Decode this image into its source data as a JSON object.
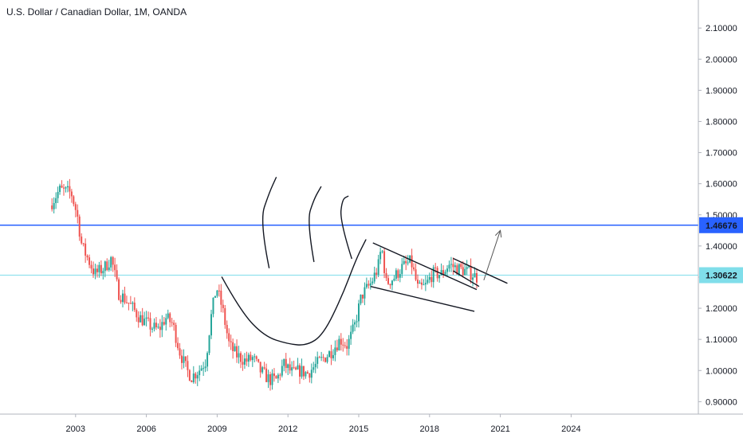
{
  "header": {
    "title": "U.S. Dollar / Canadian Dollar, 1M, OANDA"
  },
  "chart_data": {
    "type": "candlestick",
    "title": "U.S. Dollar / Canadian Dollar, 1M, OANDA",
    "xlim": [
      2000.0,
      2024.9
    ],
    "ylim": [
      0.86,
      2.19
    ],
    "y_ticks": [
      "0.90000",
      "1.00000",
      "1.10000",
      "1.20000",
      "1.30000",
      "1.40000",
      "1.50000",
      "1.60000",
      "1.70000",
      "1.80000",
      "1.90000",
      "2.00000",
      "2.10000"
    ],
    "x_ticks": [
      "2003",
      "2006",
      "2009",
      "2012",
      "2015",
      "2018",
      "2021",
      "2024"
    ],
    "x_tick_values": [
      2003,
      2006,
      2009,
      2012,
      2015,
      2018,
      2021,
      2024
    ],
    "price_path": [
      [
        2002.0,
        1.53
      ],
      [
        2002.4,
        1.58
      ],
      [
        2002.9,
        1.57
      ],
      [
        2003.15,
        1.5
      ],
      [
        2003.35,
        1.4
      ],
      [
        2003.6,
        1.36
      ],
      [
        2003.9,
        1.31
      ],
      [
        2004.3,
        1.33
      ],
      [
        2004.6,
        1.36
      ],
      [
        2004.9,
        1.25
      ],
      [
        2005.3,
        1.22
      ],
      [
        2005.8,
        1.17
      ],
      [
        2006.3,
        1.14
      ],
      [
        2006.6,
        1.13
      ],
      [
        2006.9,
        1.17
      ],
      [
        2007.2,
        1.15
      ],
      [
        2007.5,
        1.06
      ],
      [
        2007.8,
        1.0
      ],
      [
        2008.0,
        0.98
      ],
      [
        2008.3,
        1.0
      ],
      [
        2008.6,
        1.03
      ],
      [
        2008.8,
        1.16
      ],
      [
        2009.05,
        1.27
      ],
      [
        2009.3,
        1.2
      ],
      [
        2009.6,
        1.08
      ],
      [
        2009.9,
        1.05
      ],
      [
        2010.3,
        1.03
      ],
      [
        2010.6,
        1.04
      ],
      [
        2010.9,
        1.0
      ],
      [
        2011.3,
        0.97
      ],
      [
        2011.6,
        0.97
      ],
      [
        2011.9,
        1.02
      ],
      [
        2012.3,
        0.99
      ],
      [
        2012.6,
        1.0
      ],
      [
        2012.9,
        0.99
      ],
      [
        2013.3,
        1.02
      ],
      [
        2013.6,
        1.04
      ],
      [
        2013.9,
        1.06
      ],
      [
        2014.3,
        1.1
      ],
      [
        2014.6,
        1.08
      ],
      [
        2014.9,
        1.14
      ],
      [
        2015.2,
        1.24
      ],
      [
        2015.6,
        1.28
      ],
      [
        2015.9,
        1.33
      ],
      [
        2016.05,
        1.4
      ],
      [
        2016.25,
        1.28
      ],
      [
        2016.6,
        1.3
      ],
      [
        2016.9,
        1.33
      ],
      [
        2017.3,
        1.35
      ],
      [
        2017.6,
        1.26
      ],
      [
        2017.9,
        1.27
      ],
      [
        2018.2,
        1.31
      ],
      [
        2018.6,
        1.31
      ],
      [
        2018.9,
        1.34
      ],
      [
        2019.2,
        1.33
      ],
      [
        2019.6,
        1.32
      ],
      [
        2019.9,
        1.31
      ],
      [
        2020.05,
        1.3
      ]
    ],
    "horizontal_lines": [
      {
        "value": 1.46676,
        "label": "1.46676",
        "color": "#2962ff"
      },
      {
        "value": 1.30622,
        "label": "1.30622",
        "color": "#80deea"
      }
    ],
    "drawings": {
      "cup": [
        [
          2009.2,
          1.3
        ],
        [
          2010.0,
          1.19
        ],
        [
          2011.0,
          1.11
        ],
        [
          2012.0,
          1.085
        ],
        [
          2012.8,
          1.08
        ],
        [
          2013.5,
          1.115
        ],
        [
          2014.3,
          1.24
        ],
        [
          2014.9,
          1.36
        ],
        [
          2015.3,
          1.42
        ]
      ],
      "steam_lines": [
        [
          [
            2011.2,
            1.33
          ],
          [
            2010.8,
            1.48
          ],
          [
            2011.2,
            1.57
          ],
          [
            2011.5,
            1.62
          ]
        ],
        [
          [
            2013.1,
            1.35
          ],
          [
            2012.8,
            1.48
          ],
          [
            2013.1,
            1.55
          ],
          [
            2013.4,
            1.59
          ]
        ],
        [
          [
            2014.7,
            1.36
          ],
          [
            2014.2,
            1.48
          ],
          [
            2014.3,
            1.55
          ],
          [
            2014.55,
            1.56
          ]
        ]
      ],
      "wedge_upper": [
        [
          2015.6,
          1.41
        ],
        [
          2020.0,
          1.26
        ]
      ],
      "wedge_lower": [
        [
          2015.5,
          1.27
        ],
        [
          2019.9,
          1.19
        ]
      ],
      "flag_upper": [
        [
          2019.0,
          1.36
        ],
        [
          2021.3,
          1.28
        ]
      ],
      "flag_lower": [
        [
          2019.0,
          1.32
        ],
        [
          2020.1,
          1.27
        ]
      ],
      "arrow": [
        [
          2020.3,
          1.29
        ],
        [
          2021.0,
          1.45
        ]
      ]
    },
    "colors": {
      "up": "#26a69a",
      "down": "#ef5350",
      "drawing": "#131722",
      "axis": "#b2b5be"
    }
  }
}
